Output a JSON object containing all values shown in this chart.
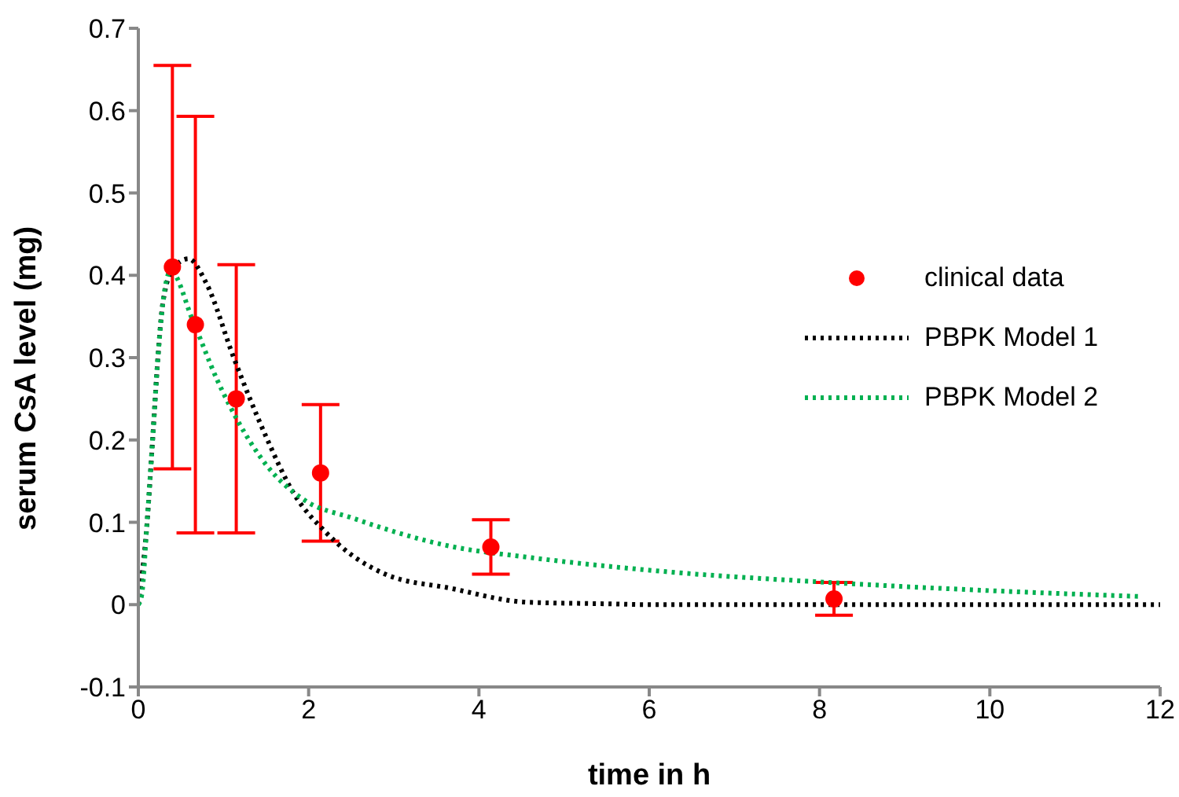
{
  "chart_data": {
    "type": "scatter",
    "xlabel": "time in h",
    "ylabel": "serum CsA level (mg)",
    "xlim": [
      0,
      12
    ],
    "xticks": [
      0,
      2,
      4,
      6,
      8,
      10,
      12
    ],
    "ylim": [
      -0.1,
      0.7
    ],
    "yticks": [
      -0.1,
      0,
      0.1,
      0.2,
      0.3,
      0.4,
      0.5,
      0.6,
      0.7
    ],
    "grid": false,
    "legend": "right",
    "marker": "circle",
    "series": [
      {
        "name": "clinical data",
        "color": "#ff0000",
        "x": [
          0.4,
          0.67,
          1.15,
          2.14,
          4.14,
          8.17
        ],
        "values": [
          0.41,
          0.34,
          0.25,
          0.16,
          0.07,
          0.007
        ],
        "errors": [
          [
            0.165,
            0.655
          ],
          [
            0.087,
            0.593
          ],
          [
            0.087,
            0.413
          ],
          [
            0.077,
            0.243
          ],
          [
            0.037,
            0.103
          ],
          [
            -0.013,
            0.027
          ]
        ]
      },
      {
        "name": "PBPK Model 1",
        "type": "line",
        "line_style": "dotted",
        "marker": "none",
        "color": "#000000",
        "x": [
          0,
          0.1,
          0.17,
          0.23,
          0.29,
          0.42,
          0.59,
          0.8,
          1.12,
          1.5,
          1.82,
          2.2,
          2.9,
          3.66,
          4.56,
          5.5,
          6,
          8,
          10,
          12
        ],
        "values": [
          0,
          0.096,
          0.204,
          0.3,
          0.368,
          0.41,
          0.42,
          0.39,
          0.3,
          0.204,
          0.136,
          0.088,
          0.037,
          0.02,
          0.003,
          0.001,
          0,
          0,
          0,
          0
        ]
      },
      {
        "name": "PBPK Model 2",
        "type": "line",
        "line_style": "dotted",
        "marker": "none",
        "color": "#00b050",
        "x": [
          0,
          0.04,
          0.1,
          0.17,
          0.23,
          0.29,
          0.38,
          0.64,
          0.93,
          1.18,
          1.5,
          1.95,
          2.52,
          3.66,
          4.62,
          6.2,
          8.1,
          10,
          11.74
        ],
        "values": [
          0,
          0.012,
          0.096,
          0.204,
          0.3,
          0.368,
          0.405,
          0.345,
          0.272,
          0.221,
          0.17,
          0.127,
          0.105,
          0.071,
          0.057,
          0.04,
          0.027,
          0.017,
          0.01
        ]
      }
    ]
  }
}
